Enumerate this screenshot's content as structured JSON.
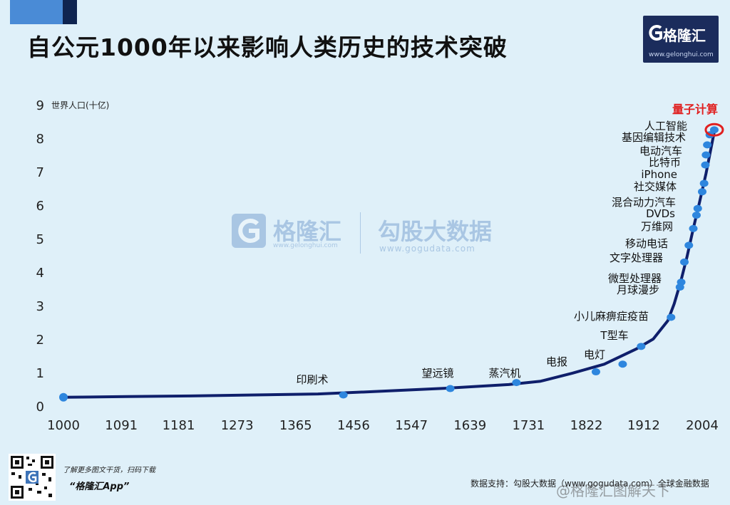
{
  "header": {
    "title": "自公元1000年以来影响人类历史的技术突破",
    "logo_text": "格隆汇",
    "logo_url": "www.gelonghui.com"
  },
  "watermark": {
    "brand1": "格隆汇",
    "brand1_url": "www.gelonghui.com",
    "brand2": "勾股大数据",
    "brand2_url": "www.gogudata.com"
  },
  "footer": {
    "note": "了解更多图文干货，扫码下载",
    "app": "“格隆汇App”",
    "source": "数据支持：勾股大数据（www.gogudata.com）全球金融数据",
    "weibo": "@格隆汇图解天下"
  },
  "colors": {
    "background": "#dff0f9",
    "line": "#0f1f6b",
    "point": "#2e86de",
    "highlight": "#e02020",
    "brand_dark": "#1b2c5c"
  },
  "chart_data": {
    "type": "line",
    "title": "自公元1000年以来影响人类历史的技术突破",
    "ylabel": "世界人口(十亿)",
    "xlabel": "",
    "xlim": [
      1000,
      2030
    ],
    "ylim": [
      0,
      9
    ],
    "xticks": [
      1000,
      1091,
      1181,
      1273,
      1365,
      1456,
      1547,
      1639,
      1731,
      1822,
      1912,
      2004
    ],
    "yticks": [
      0,
      1,
      2,
      3,
      4,
      5,
      6,
      7,
      8,
      9
    ],
    "grid": false,
    "series": [
      {
        "x": [
          1000,
          1100,
          1200,
          1300,
          1400,
          1500,
          1600,
          1700,
          1750,
          1800,
          1850,
          1900,
          1927,
          1950,
          1960,
          1970,
          1980,
          1990,
          2000,
          2010,
          2023
        ],
        "y": [
          0.26,
          0.28,
          0.3,
          0.33,
          0.36,
          0.44,
          0.53,
          0.64,
          0.74,
          0.98,
          1.25,
          1.7,
          2.0,
          2.55,
          3.05,
          3.7,
          4.45,
          5.3,
          6.1,
          6.95,
          8.2
        ]
      }
    ],
    "events": [
      {
        "label": "印刷术",
        "year": 1440,
        "value": 0.33
      },
      {
        "label": "望远镜",
        "year": 1608,
        "value": 0.52
      },
      {
        "label": "蒸汽机",
        "year": 1712,
        "value": 0.7
      },
      {
        "label": "电报",
        "year": 1837,
        "value": 1.02
      },
      {
        "label": "电灯",
        "year": 1879,
        "value": 1.25
      },
      {
        "label": "T型车",
        "year": 1908,
        "value": 1.78
      },
      {
        "label": "小儿麻痹症疫苗",
        "year": 1955,
        "value": 2.65
      },
      {
        "label": "月球漫步",
        "year": 1969,
        "value": 3.55
      },
      {
        "label": "微型处理器",
        "year": 1971,
        "value": 3.7
      },
      {
        "label": "文字处理器",
        "year": 1976,
        "value": 4.3
      },
      {
        "label": "移动电话",
        "year": 1983,
        "value": 4.8
      },
      {
        "label": "万维网",
        "year": 1990,
        "value": 5.3
      },
      {
        "label": "DVDs",
        "year": 1995,
        "value": 5.7
      },
      {
        "label": "混合动力汽车",
        "year": 1997,
        "value": 5.9
      },
      {
        "label": "社交媒体",
        "year": 2004,
        "value": 6.4
      },
      {
        "label": "iPhone",
        "year": 2007,
        "value": 6.65
      },
      {
        "label": "比特币",
        "year": 2009,
        "value": 7.2
      },
      {
        "label": "电动汽车",
        "year": 2010,
        "value": 7.5
      },
      {
        "label": "基因编辑技术",
        "year": 2012,
        "value": 7.8
      },
      {
        "label": "人工智能",
        "year": 2016,
        "value": 8.1
      },
      {
        "label": "量子计算",
        "year": 2023,
        "value": 8.25,
        "highlight": true
      }
    ]
  }
}
